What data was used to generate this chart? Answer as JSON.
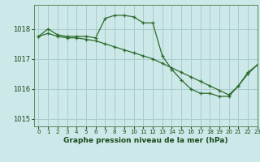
{
  "title": "Graphe pression niveau de la mer (hPa)",
  "bg_color": "#cce8e8",
  "grid_color": "#aacccc",
  "line_color": "#2d6b2d",
  "xlim": [
    -0.5,
    23
  ],
  "ylim": [
    1014.75,
    1018.8
  ],
  "yticks": [
    1015,
    1016,
    1017,
    1018
  ],
  "xticks": [
    0,
    1,
    2,
    3,
    4,
    5,
    6,
    7,
    8,
    9,
    10,
    11,
    12,
    13,
    14,
    15,
    16,
    17,
    18,
    19,
    20,
    21,
    22,
    23
  ],
  "series1": {
    "x": [
      0,
      1,
      2,
      3,
      4,
      5,
      6,
      7,
      8,
      9,
      10,
      11,
      12,
      13,
      14,
      15,
      16,
      17,
      18,
      19,
      20,
      21,
      22,
      23
    ],
    "y": [
      1017.75,
      1018.0,
      1017.8,
      1017.75,
      1017.75,
      1017.75,
      1017.7,
      1018.35,
      1018.45,
      1018.45,
      1018.4,
      1018.2,
      1018.2,
      1017.1,
      1016.65,
      1016.3,
      1016.0,
      1015.85,
      1015.85,
      1015.75,
      1015.75,
      1016.1,
      1016.55,
      1016.8
    ]
  },
  "series2": {
    "x": [
      0,
      1,
      2,
      3,
      4,
      5,
      6,
      7,
      8,
      9,
      10,
      11,
      12,
      13,
      14,
      15,
      16,
      17,
      18,
      19,
      20,
      21,
      22,
      23
    ],
    "y": [
      1017.75,
      1017.85,
      1017.75,
      1017.7,
      1017.7,
      1017.65,
      1017.6,
      1017.5,
      1017.4,
      1017.3,
      1017.2,
      1017.1,
      1017.0,
      1016.85,
      1016.7,
      1016.55,
      1016.4,
      1016.25,
      1016.1,
      1015.95,
      1015.8,
      1016.1,
      1016.5,
      1016.8
    ]
  }
}
